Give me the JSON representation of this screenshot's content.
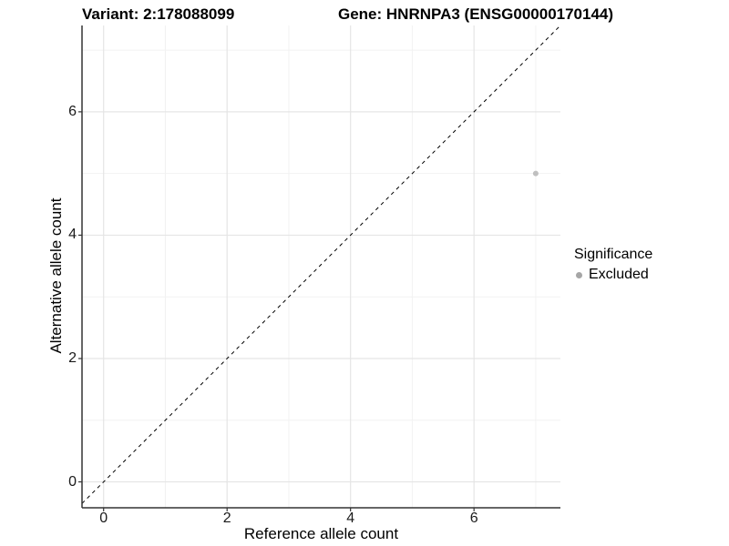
{
  "header": {
    "title_left": "Variant: 2:178088099",
    "title_right": "Gene: HNRNPA3 (ENSG00000170144)"
  },
  "chart_data": {
    "type": "scatter",
    "title": "Variant: 2:178088099  Gene: HNRNPA3 (ENSG00000170144)",
    "xlabel": "Reference allele count",
    "ylabel": "Alternative allele count",
    "xlim": [
      -0.35,
      7.4
    ],
    "ylim": [
      -0.42,
      7.4
    ],
    "x_ticks": [
      0,
      2,
      4,
      6
    ],
    "y_ticks": [
      0,
      2,
      4,
      6
    ],
    "major_gridlines": [
      0,
      2,
      4,
      6
    ],
    "minor_gridlines": [
      1,
      3,
      5,
      7
    ],
    "grid": true,
    "series": [
      {
        "name": "Excluded",
        "points": [
          {
            "x": 7,
            "y": 5
          }
        ]
      }
    ],
    "reference_line": {
      "type": "identity",
      "slope": 1,
      "intercept": 0,
      "style": "dashed"
    },
    "legend": {
      "title": "Significance",
      "position": "right",
      "entries": [
        {
          "label": "Excluded",
          "color": "#a6a6a6"
        }
      ]
    },
    "colors": {
      "point": "#bfbfbf",
      "major_grid": "#e5e5e5",
      "minor_grid": "#f2f2f2",
      "axis_line": "#333333",
      "reference_line": "#000000",
      "text": "#000000"
    }
  }
}
